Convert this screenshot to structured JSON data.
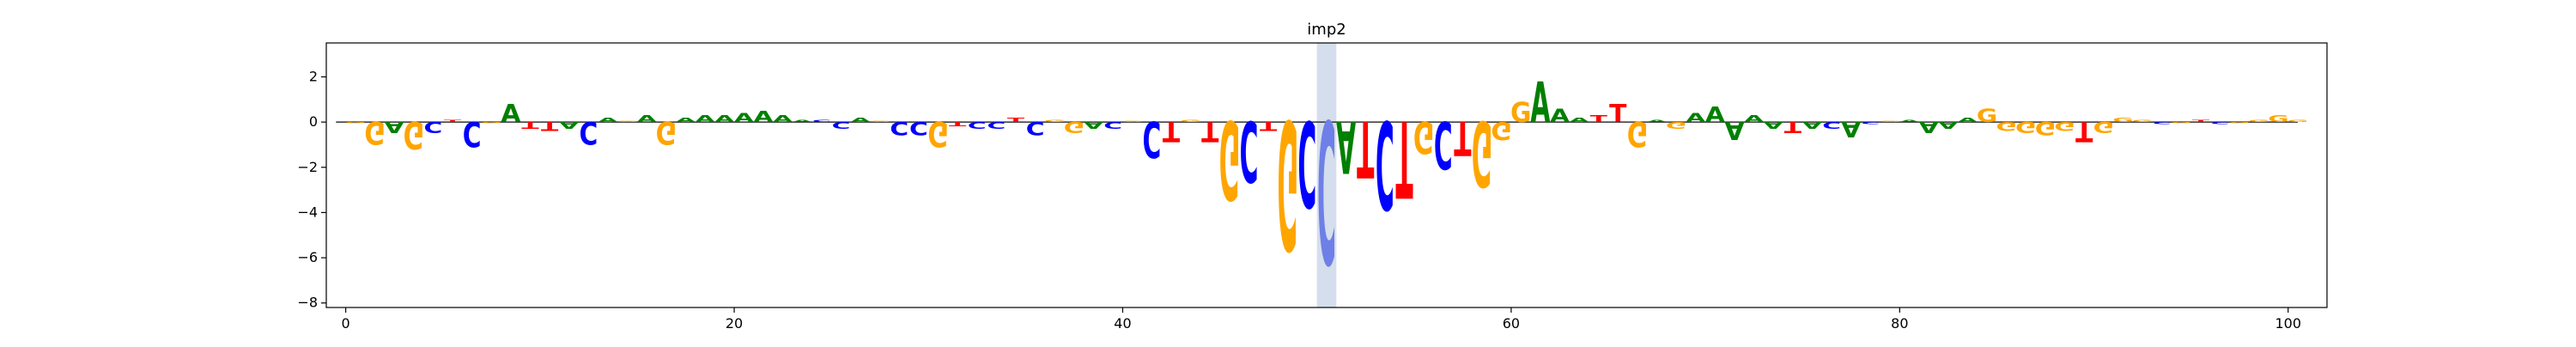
{
  "chart_data": {
    "type": "sequence-logo",
    "title": "imp2",
    "xlabel": "",
    "ylabel": "",
    "xlim": [
      -1,
      102
    ],
    "ylim": [
      -8.2,
      3.5
    ],
    "x_ticks": [
      0,
      20,
      40,
      60,
      80,
      100
    ],
    "y_ticks": [
      2,
      0,
      -2,
      -4,
      -6,
      -8
    ],
    "highlight": {
      "x_start": 50.0,
      "x_end": 51.0,
      "color": "#d4deec"
    },
    "colors": {
      "A": "#008000",
      "C": "#0000ff",
      "G": "#ffa500",
      "T": "#ff0000"
    },
    "highlight_letter_color": {
      "C": "#6f7fe8"
    },
    "letters": [
      {
        "x": 0,
        "base": "G",
        "value": -0.05
      },
      {
        "x": 1,
        "base": "G",
        "value": -1.0
      },
      {
        "x": 2,
        "base": "A",
        "value": -0.5
      },
      {
        "x": 3,
        "base": "G",
        "value": -1.2
      },
      {
        "x": 4,
        "base": "C",
        "value": -0.5
      },
      {
        "x": 5,
        "base": "T",
        "value": 0.1
      },
      {
        "x": 6,
        "base": "C",
        "value": -1.1
      },
      {
        "x": 7,
        "base": "G",
        "value": -0.05
      },
      {
        "x": 8,
        "base": "A",
        "value": 0.8
      },
      {
        "x": 9,
        "base": "T",
        "value": -0.3
      },
      {
        "x": 10,
        "base": "T",
        "value": -0.4
      },
      {
        "x": 11,
        "base": "A",
        "value": -0.3
      },
      {
        "x": 12,
        "base": "C",
        "value": -1.0
      },
      {
        "x": 13,
        "base": "A",
        "value": 0.2
      },
      {
        "x": 14,
        "base": "G",
        "value": 0.05
      },
      {
        "x": 15,
        "base": "A",
        "value": 0.3
      },
      {
        "x": 16,
        "base": "G",
        "value": -1.0
      },
      {
        "x": 17,
        "base": "A",
        "value": 0.2
      },
      {
        "x": 18,
        "base": "A",
        "value": 0.3
      },
      {
        "x": 19,
        "base": "A",
        "value": 0.3
      },
      {
        "x": 20,
        "base": "A",
        "value": 0.4
      },
      {
        "x": 21,
        "base": "A",
        "value": 0.5
      },
      {
        "x": 22,
        "base": "A",
        "value": 0.3
      },
      {
        "x": 23,
        "base": "A",
        "value": 0.1
      },
      {
        "x": 24,
        "base": "C",
        "value": 0.1
      },
      {
        "x": 25,
        "base": "C",
        "value": -0.3
      },
      {
        "x": 26,
        "base": "A",
        "value": 0.2
      },
      {
        "x": 27,
        "base": "G",
        "value": 0.05
      },
      {
        "x": 28,
        "base": "C",
        "value": -0.6
      },
      {
        "x": 29,
        "base": "C",
        "value": -0.6
      },
      {
        "x": 30,
        "base": "G",
        "value": -1.1
      },
      {
        "x": 31,
        "base": "T",
        "value": -0.2
      },
      {
        "x": 32,
        "base": "C",
        "value": -0.3
      },
      {
        "x": 33,
        "base": "C",
        "value": -0.3
      },
      {
        "x": 34,
        "base": "T",
        "value": 0.2
      },
      {
        "x": 35,
        "base": "C",
        "value": -0.6
      },
      {
        "x": 36,
        "base": "G",
        "value": 0.1
      },
      {
        "x": 37,
        "base": "G",
        "value": -0.5
      },
      {
        "x": 38,
        "base": "A",
        "value": -0.3
      },
      {
        "x": 39,
        "base": "C",
        "value": -0.3
      },
      {
        "x": 40,
        "base": "G",
        "value": 0.05
      },
      {
        "x": 41,
        "base": "C",
        "value": -1.6
      },
      {
        "x": 42,
        "base": "T",
        "value": -0.9
      },
      {
        "x": 43,
        "base": "G",
        "value": 0.1
      },
      {
        "x": 44,
        "base": "T",
        "value": -0.9
      },
      {
        "x": 45,
        "base": "G",
        "value": -3.5
      },
      {
        "x": 46,
        "base": "C",
        "value": -2.7
      },
      {
        "x": 47,
        "base": "T",
        "value": -0.4
      },
      {
        "x": 48,
        "base": "G",
        "value": -5.7
      },
      {
        "x": 49,
        "base": "C",
        "value": -3.8
      },
      {
        "x": 50,
        "base": "C",
        "value": -6.3
      },
      {
        "x": 51,
        "base": "A",
        "value": -2.3
      },
      {
        "x": 52,
        "base": "T",
        "value": -2.5
      },
      {
        "x": 53,
        "base": "C",
        "value": -3.9
      },
      {
        "x": 54,
        "base": "T",
        "value": -3.4
      },
      {
        "x": 55,
        "base": "G",
        "value": -1.4
      },
      {
        "x": 56,
        "base": "C",
        "value": -2.1
      },
      {
        "x": 57,
        "base": "T",
        "value": -1.5
      },
      {
        "x": 58,
        "base": "G",
        "value": -2.9
      },
      {
        "x": 59,
        "base": "G",
        "value": -0.8
      },
      {
        "x": 60,
        "base": "G",
        "value": 0.9
      },
      {
        "x": 61,
        "base": "A",
        "value": 1.8
      },
      {
        "x": 62,
        "base": "A",
        "value": 0.6
      },
      {
        "x": 63,
        "base": "A",
        "value": 0.2
      },
      {
        "x": 64,
        "base": "T",
        "value": 0.3
      },
      {
        "x": 65,
        "base": "T",
        "value": 0.8
      },
      {
        "x": 66,
        "base": "G",
        "value": -1.1
      },
      {
        "x": 67,
        "base": "A",
        "value": 0.1
      },
      {
        "x": 68,
        "base": "G",
        "value": -0.3
      },
      {
        "x": 69,
        "base": "A",
        "value": 0.4
      },
      {
        "x": 70,
        "base": "A",
        "value": 0.7
      },
      {
        "x": 71,
        "base": "A",
        "value": -0.8
      },
      {
        "x": 72,
        "base": "A",
        "value": 0.3
      },
      {
        "x": 73,
        "base": "A",
        "value": -0.3
      },
      {
        "x": 74,
        "base": "T",
        "value": -0.5
      },
      {
        "x": 75,
        "base": "A",
        "value": -0.3
      },
      {
        "x": 76,
        "base": "C",
        "value": -0.3
      },
      {
        "x": 77,
        "base": "A",
        "value": -0.7
      },
      {
        "x": 78,
        "base": "C",
        "value": -0.1
      },
      {
        "x": 79,
        "base": "G",
        "value": 0.05
      },
      {
        "x": 80,
        "base": "A",
        "value": 0.1
      },
      {
        "x": 81,
        "base": "A",
        "value": -0.5
      },
      {
        "x": 82,
        "base": "A",
        "value": -0.3
      },
      {
        "x": 83,
        "base": "A",
        "value": 0.2
      },
      {
        "x": 84,
        "base": "G",
        "value": 0.6
      },
      {
        "x": 85,
        "base": "G",
        "value": -0.4
      },
      {
        "x": 86,
        "base": "G",
        "value": -0.5
      },
      {
        "x": 87,
        "base": "G",
        "value": -0.6
      },
      {
        "x": 88,
        "base": "G",
        "value": -0.4
      },
      {
        "x": 89,
        "base": "T",
        "value": -0.9
      },
      {
        "x": 90,
        "base": "G",
        "value": -0.5
      },
      {
        "x": 91,
        "base": "G",
        "value": 0.2
      },
      {
        "x": 92,
        "base": "G",
        "value": 0.1
      },
      {
        "x": 93,
        "base": "C",
        "value": -0.1
      },
      {
        "x": 94,
        "base": "G",
        "value": -0.05
      },
      {
        "x": 95,
        "base": "T",
        "value": 0.1
      },
      {
        "x": 96,
        "base": "C",
        "value": -0.1
      },
      {
        "x": 97,
        "base": "G",
        "value": -0.05
      },
      {
        "x": 98,
        "base": "G",
        "value": 0.1
      },
      {
        "x": 99,
        "base": "G",
        "value": 0.3
      },
      {
        "x": 100,
        "base": "G",
        "value": 0.1
      }
    ]
  }
}
